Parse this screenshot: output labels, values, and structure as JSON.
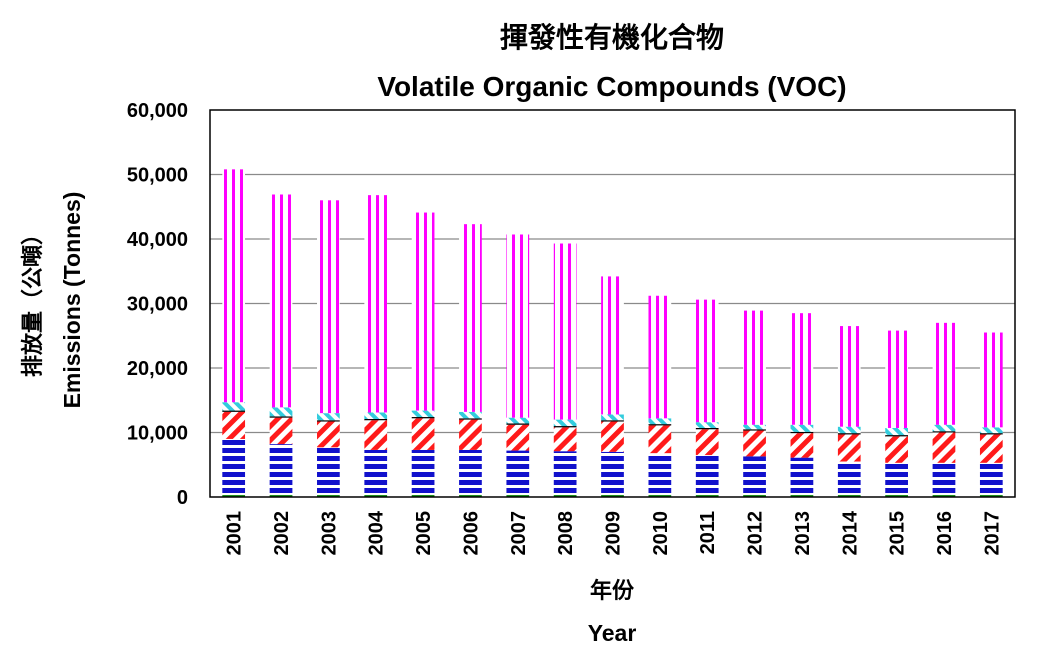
{
  "chart_data": {
    "type": "bar",
    "stacked": true,
    "title": "揮發性有機化合物",
    "subtitle": "Volatile Organic Compounds (VOC)",
    "xlabel": "年份",
    "xlabel_en": "Year",
    "ylabel": "排放量（公噸）",
    "ylabel_en": "Emissions (Tonnes)",
    "ylim": [
      0,
      60000
    ],
    "yticks": [
      0,
      10000,
      20000,
      30000,
      40000,
      50000,
      60000
    ],
    "ytick_labels": [
      "0",
      "10,000",
      "20,000",
      "30,000",
      "40,000",
      "50,000",
      "60,000"
    ],
    "grid": true,
    "legend": "none",
    "categories": [
      "2001",
      "2002",
      "2003",
      "2004",
      "2005",
      "2006",
      "2007",
      "2008",
      "2009",
      "2010",
      "2011",
      "2012",
      "2013",
      "2014",
      "2015",
      "2016",
      "2017"
    ],
    "series": [
      {
        "color": "#008000",
        "pattern": "solid",
        "values": [
          300,
          300,
          300,
          300,
          300,
          300,
          300,
          300,
          300,
          300,
          300,
          300,
          300,
          300,
          300,
          300,
          300
        ]
      },
      {
        "color": "#1111cc",
        "pattern": "horizontal",
        "values": [
          8700,
          7900,
          7400,
          7000,
          7000,
          7000,
          6900,
          6800,
          6700,
          6500,
          6200,
          6000,
          5800,
          5200,
          5000,
          5000,
          5000
        ]
      },
      {
        "color": "#ff1a1a",
        "pattern": "diagonal",
        "values": [
          4200,
          4100,
          4000,
          4600,
          4900,
          4700,
          4000,
          3700,
          4700,
          4300,
          4000,
          4000,
          3800,
          4200,
          4100,
          4700,
          4400
        ]
      },
      {
        "color": "#000000",
        "pattern": "solid",
        "values": [
          200,
          200,
          200,
          200,
          200,
          200,
          200,
          200,
          200,
          200,
          200,
          200,
          200,
          200,
          200,
          200,
          200
        ]
      },
      {
        "color": "#33ccdd",
        "pattern": "diagonal-rev",
        "values": [
          1300,
          1400,
          1100,
          1000,
          1000,
          1000,
          900,
          1000,
          900,
          900,
          900,
          700,
          1100,
          1000,
          1100,
          1000,
          900
        ]
      },
      {
        "color": "#ff00ff",
        "pattern": "vertical",
        "values": [
          36100,
          33000,
          33000,
          33700,
          30700,
          29100,
          28400,
          27300,
          21400,
          19000,
          19000,
          17700,
          17300,
          15600,
          15100,
          15800,
          14700
        ]
      }
    ]
  }
}
